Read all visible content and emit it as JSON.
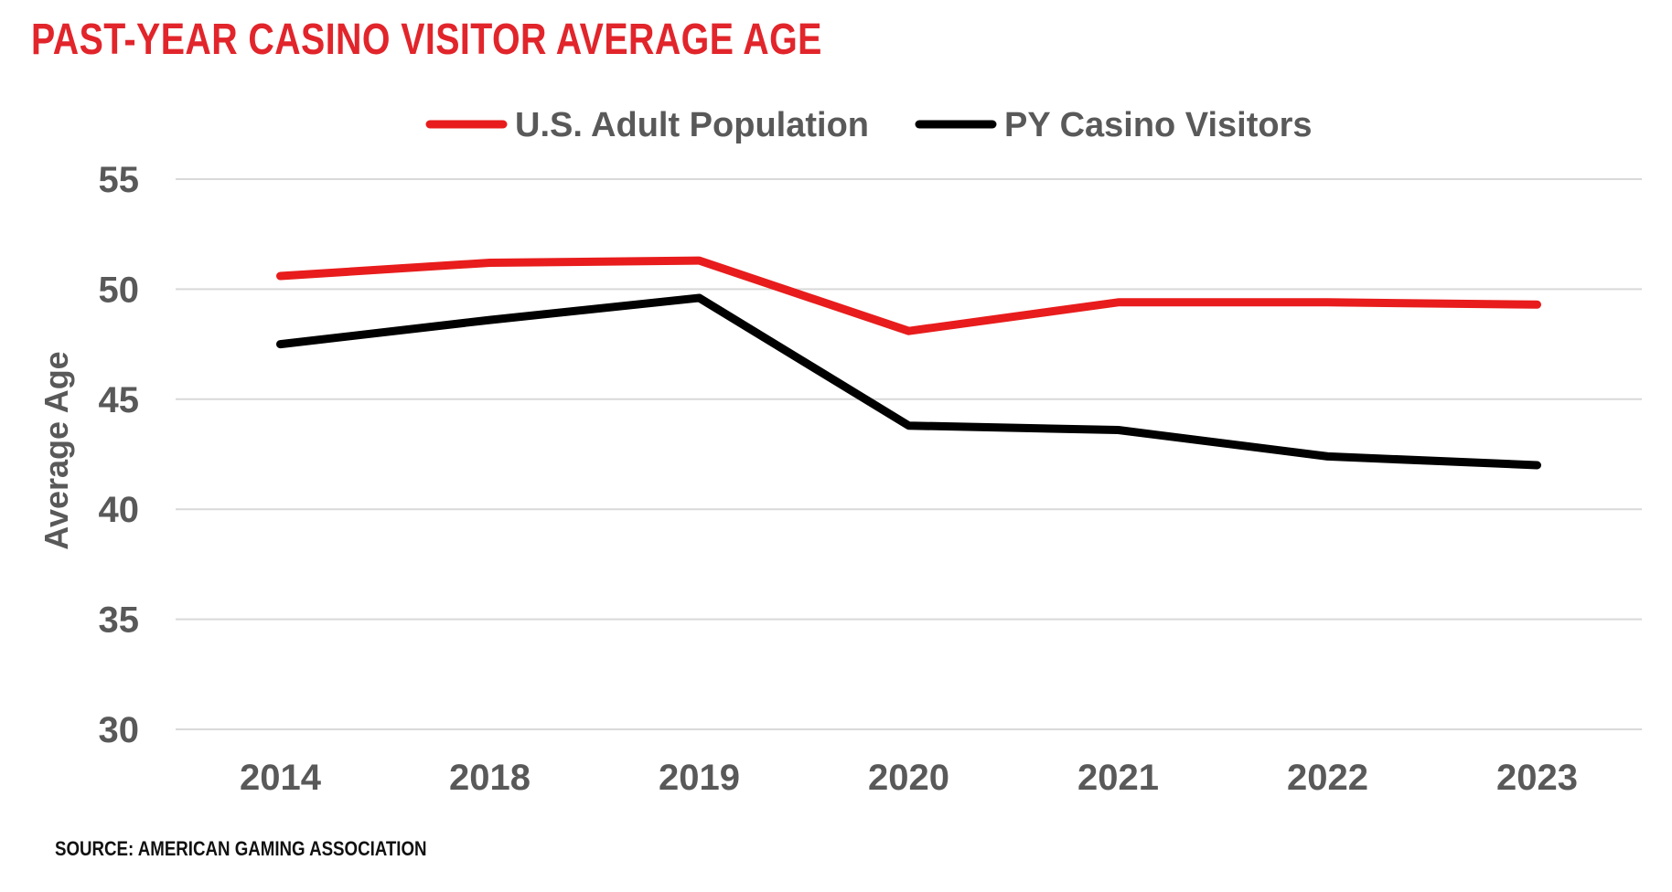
{
  "title": "PAST-YEAR CASINO VISITOR AVERAGE AGE",
  "source": "SOURCE: AMERICAN GAMING ASSOCIATION",
  "chart_data": {
    "type": "line",
    "title": "PAST-YEAR CASINO VISITOR AVERAGE AGE",
    "xlabel": "",
    "ylabel": "Average Age",
    "categories": [
      "2014",
      "2018",
      "2019",
      "2020",
      "2021",
      "2022",
      "2023"
    ],
    "ylim": [
      30,
      55
    ],
    "yticks": [
      30,
      35,
      40,
      45,
      50,
      55
    ],
    "grid": true,
    "legend_position": "top",
    "series": [
      {
        "name": "U.S. Adult Population",
        "color": "#e81c1c",
        "values": [
          50.6,
          51.2,
          51.3,
          48.1,
          49.4,
          49.4,
          49.3
        ]
      },
      {
        "name": "PY Casino Visitors",
        "color": "#000000",
        "values": [
          47.5,
          48.6,
          49.6,
          43.8,
          43.6,
          42.4,
          42.0
        ]
      }
    ]
  }
}
